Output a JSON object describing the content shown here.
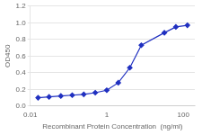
{
  "chart_data": {
    "type": "line",
    "x": [
      0.016,
      0.031,
      0.063,
      0.125,
      0.25,
      0.5,
      1.0,
      2.0,
      4.0,
      8.0,
      32.0,
      64.0,
      128.0
    ],
    "values": [
      0.1,
      0.11,
      0.12,
      0.13,
      0.14,
      0.16,
      0.19,
      0.28,
      0.46,
      0.73,
      0.88,
      0.95,
      0.97
    ],
    "color": "#2030C0",
    "marker": "diamond",
    "xlabel": "Recombinant Protein Concentration  (ng/ml)",
    "ylabel": "OD450",
    "log": "x",
    "xlim": [
      0.01,
      200
    ],
    "xticks": [
      0.01,
      1,
      100
    ],
    "ylim": [
      0.0,
      1.2
    ],
    "yticks": [
      {
        "value": 0.0,
        "label": "0.0"
      },
      0.2,
      0.4,
      0.6,
      0.8,
      {
        "value": 1.0,
        "label": "1.0"
      },
      1.2
    ],
    "grid": "y"
  }
}
